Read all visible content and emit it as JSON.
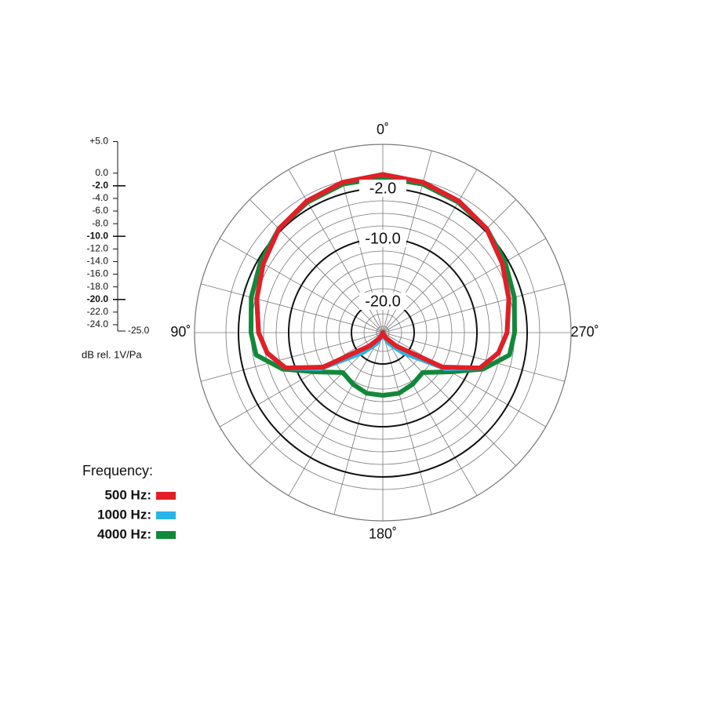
{
  "chart_data": {
    "type": "polar",
    "r_axis_label": "dB rel. 1V/Pa",
    "rlim": [
      -25,
      5
    ],
    "rticks": [
      {
        "value": 5,
        "label": "+5.0"
      },
      {
        "value": 0,
        "label": "0.0"
      },
      {
        "value": -2,
        "label": "-2.0"
      },
      {
        "value": -4,
        "label": "-4.0"
      },
      {
        "value": -6,
        "label": "-6.0"
      },
      {
        "value": -8,
        "label": "-8.0"
      },
      {
        "value": -10,
        "label": "-10.0"
      },
      {
        "value": -12,
        "label": "-12.0"
      },
      {
        "value": -14,
        "label": "-14.0"
      },
      {
        "value": -16,
        "label": "-16.0"
      },
      {
        "value": -18,
        "label": "-18.0"
      },
      {
        "value": -20,
        "label": "-20.0"
      },
      {
        "value": -22,
        "label": "-22.0"
      },
      {
        "value": -24,
        "label": "-24.0"
      },
      {
        "value": -25,
        "label": "-25.0"
      }
    ],
    "rings": [
      {
        "value": -2,
        "label": "-2.0"
      },
      {
        "value": -10,
        "label": "-10.0"
      },
      {
        "value": -20,
        "label": "-20.0"
      }
    ],
    "theta_ticks": [
      {
        "value": 0,
        "label": "0˚"
      },
      {
        "value": 90,
        "label": "90˚"
      },
      {
        "value": 180,
        "label": "180˚"
      },
      {
        "value": 270,
        "label": "270˚"
      }
    ],
    "theta_grid": [
      0,
      15,
      30,
      45,
      60,
      75,
      90,
      105,
      120,
      135,
      150,
      165,
      180,
      195,
      210,
      225,
      240,
      255,
      270,
      285,
      300,
      315,
      330,
      345
    ],
    "legend_title": "Frequency:",
    "angles": [
      0,
      15,
      30,
      45,
      60,
      75,
      90,
      100,
      110,
      120,
      135,
      150,
      165,
      180,
      195,
      210,
      225,
      240,
      250,
      260,
      270,
      285,
      300,
      315,
      330,
      345
    ],
    "series": [
      {
        "name": "500 Hz:",
        "color": "#e11f26",
        "values": [
          0.2,
          -0.2,
          -0.8,
          -1.6,
          -3,
          -4.2,
          -5.2,
          -6.3,
          -8.5,
          -14,
          -22,
          -24,
          -24.7,
          -25,
          -24.7,
          -24,
          -22,
          -14,
          -8.5,
          -6.3,
          -5.2,
          -4.2,
          -3,
          -1.6,
          -0.8,
          -0.2
        ]
      },
      {
        "name": "1000 Hz:",
        "color": "#27b4e8",
        "values": [
          0.2,
          -0.2,
          -0.8,
          -1.6,
          -3,
          -4.2,
          -5.2,
          -6.3,
          -8.5,
          -13.5,
          -20.5,
          -23,
          -24.5,
          -25,
          -24.5,
          -23,
          -20.5,
          -13.5,
          -8.5,
          -6.3,
          -5.2,
          -4.2,
          -3,
          -1.6,
          -0.8,
          -0.2
        ]
      },
      {
        "name": "4000 Hz:",
        "color": "#12883a",
        "values": [
          -0.3,
          -0.5,
          -1,
          -1.6,
          -2.5,
          -3.3,
          -4,
          -4.5,
          -8,
          -12.5,
          -16,
          -15.5,
          -15,
          -15,
          -15,
          -15.5,
          -16,
          -12.5,
          -8,
          -4.5,
          -4,
          -3.3,
          -2.5,
          -1.6,
          -1,
          -0.5
        ]
      }
    ]
  }
}
